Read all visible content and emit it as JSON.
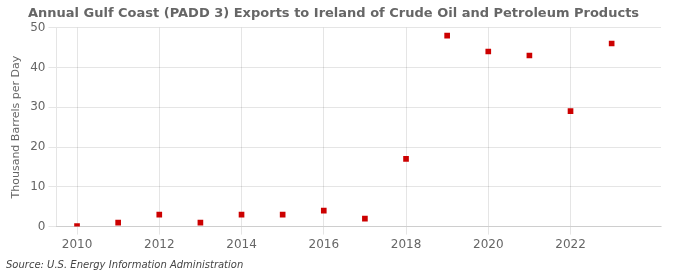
{
  "chart_data": {
    "type": "scatter",
    "title": "Annual Gulf Coast (PADD 3) Exports to Ireland of Crude Oil and Petroleum Products",
    "ylabel": "Thousand Barrels per Day",
    "source": "Source: U.S. Energy Information Administration",
    "x": [
      2010,
      2011,
      2012,
      2013,
      2014,
      2015,
      2016,
      2017,
      2018,
      2019,
      2020,
      2021,
      2022,
      2023
    ],
    "values": [
      0.1,
      1.0,
      3.0,
      1.0,
      3.0,
      3.0,
      4.0,
      2.0,
      17.0,
      48.0,
      44.0,
      43.0,
      29.0,
      46.0
    ],
    "color": "#cc0000",
    "marker": "square",
    "xlim": [
      2009.5,
      2024.2
    ],
    "xticks": [
      2010,
      2012,
      2014,
      2016,
      2018,
      2020,
      2022
    ],
    "ylim": [
      0,
      50
    ],
    "yticks": [
      0,
      10,
      20,
      30,
      40,
      50
    ],
    "grid": true
  }
}
